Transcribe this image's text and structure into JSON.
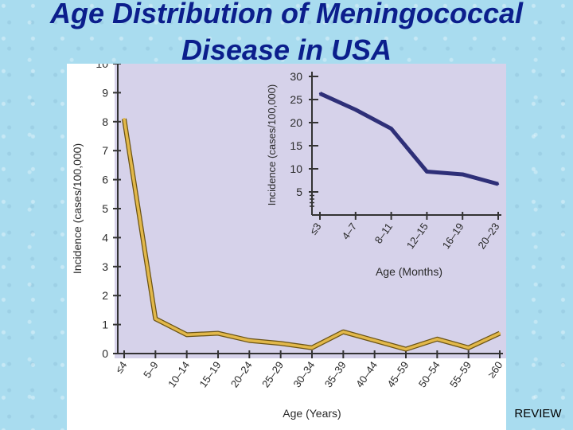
{
  "slide": {
    "title": "Age Distribution of Meningococcal Disease in USA",
    "review_label": "REVIEW"
  },
  "colors": {
    "background": "#a9dcef",
    "title": "#0b1e8c",
    "plot_background": "#d6d2ea",
    "main_line": "#e2b84a",
    "inset_line": "#2e2f78"
  },
  "chart_data": [
    {
      "type": "line",
      "title": "",
      "xlabel": "Age (Years)",
      "ylabel": "Incidence (cases/100,000)",
      "categories": [
        "≤4",
        "5–9",
        "10–14",
        "15–19",
        "20–24",
        "25–29",
        "30–34",
        "35–39",
        "40–44",
        "45–59",
        "50–54",
        "55–59",
        "≥60"
      ],
      "series": [
        {
          "values": [
            8.1,
            1.2,
            0.65,
            0.7,
            0.45,
            0.35,
            0.2,
            0.75,
            0.45,
            0.15,
            0.5,
            0.2,
            0.7
          ]
        }
      ],
      "ylim": [
        0,
        10
      ],
      "yticks": [
        "0",
        "1",
        "2",
        "3",
        "4",
        "5",
        "6",
        "7",
        "8",
        "9",
        "10"
      ],
      "grid": false
    },
    {
      "type": "line",
      "title": "",
      "xlabel": "Age (Months)",
      "ylabel": "Incidence (cases/100,000)",
      "categories": [
        "≤3",
        "4–7",
        "8–11",
        "12–15",
        "16–19",
        "20–23"
      ],
      "series": [
        {
          "values": [
            26.3,
            22.8,
            18.7,
            9.4,
            8.8,
            6.7
          ]
        }
      ],
      "ylim": [
        0,
        30
      ],
      "yticks": [
        "5",
        "10",
        "15",
        "20",
        "25",
        "30"
      ],
      "grid": false
    }
  ]
}
